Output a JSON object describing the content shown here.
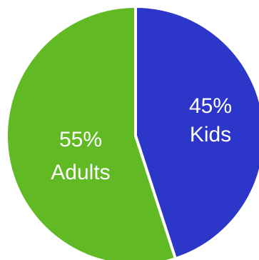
{
  "chart_data": {
    "type": "pie",
    "start_position": "top",
    "direction": "clockwise",
    "slices": [
      {
        "name": "Kids",
        "value": 45,
        "percent_label": "45%",
        "color": "#2c36c8"
      },
      {
        "name": "Adults",
        "value": 55,
        "percent_label": "55%",
        "color": "#61ba24"
      }
    ],
    "slice_border_color": "#ffffff",
    "legend": "none"
  }
}
